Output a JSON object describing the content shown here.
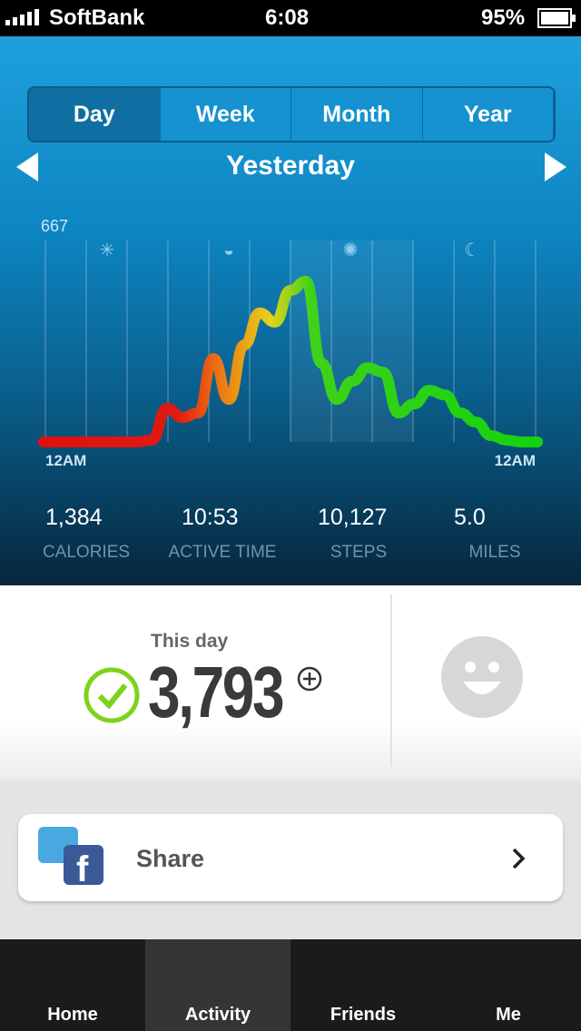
{
  "status_bar": {
    "carrier": "SoftBank",
    "time": "6:08",
    "battery": "95%"
  },
  "tabs": [
    "Day",
    "Week",
    "Month",
    "Year"
  ],
  "selected_tab": 0,
  "date_title": "Yesterday",
  "graph": {
    "max_label": 667,
    "x_labels": [
      "12AM",
      "12AM"
    ],
    "values": [
      0,
      0,
      0,
      0,
      0,
      0,
      0,
      6,
      111,
      81,
      96,
      276,
      141,
      321,
      427,
      397,
      502,
      532,
      261,
      141,
      201,
      246,
      231,
      96,
      126,
      171,
      156,
      96,
      66,
      21,
      6,
      0,
      0
    ]
  },
  "stats": [
    {
      "value": "1,384",
      "label": "CALORIES"
    },
    {
      "value": "10:53",
      "label": "ACTIVE TIME"
    },
    {
      "value": "10,127",
      "label": "STEPS"
    },
    {
      "value": "5.0",
      "label": "MILES"
    }
  ],
  "summary": {
    "label": "This day",
    "value": "3,793"
  },
  "share": "Share",
  "nav": [
    "Home",
    "Activity",
    "Friends",
    "Me"
  ],
  "selected_nav": 1
}
